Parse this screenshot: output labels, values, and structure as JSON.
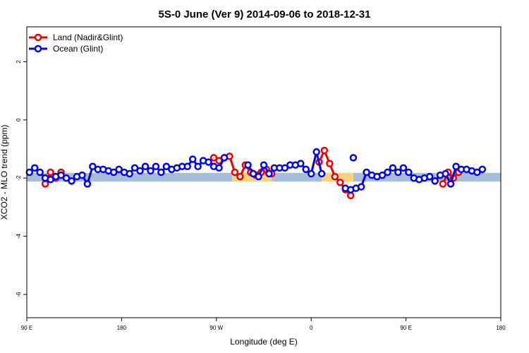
{
  "chart_data": {
    "type": "line",
    "title": "5S-0 June (Ver 9)   2014-09-06 to 2018-12-31",
    "xlabel": "Longitude (deg E)",
    "ylabel": "XCO2 - MLO trend (ppm)",
    "xlim": [
      90,
      450
    ],
    "ylim": [
      -6.8,
      3.2
    ],
    "xticks": [
      {
        "value": 90,
        "label": "90 E"
      },
      {
        "value": 162,
        "label": "180"
      },
      {
        "value": 234,
        "label": "90 W"
      },
      {
        "value": 306,
        "label": "0"
      },
      {
        "value": 378,
        "label": "90 E"
      },
      {
        "value": 450,
        "label": "180"
      }
    ],
    "yticks": [
      {
        "value": 2,
        "label": "2"
      },
      {
        "value": 0,
        "label": "0"
      },
      {
        "value": -2,
        "label": "-2"
      },
      {
        "value": -4,
        "label": "-4"
      },
      {
        "value": -6,
        "label": "-6"
      }
    ],
    "legend": {
      "position": "top-left"
    },
    "background_bands": [
      {
        "surface": "ocean",
        "color": "#a6bddb",
        "ymin": -2.12,
        "ymax": -1.82,
        "ranges": [
          [
            90,
            246
          ],
          [
            276,
            314
          ],
          [
            338,
            450
          ]
        ]
      },
      {
        "surface": "land",
        "color": "#fdd27a",
        "ymin": -2.12,
        "ymax": -1.82,
        "ranges": [
          [
            246,
            276
          ],
          [
            314,
            338
          ]
        ]
      }
    ],
    "series": [
      {
        "name": "Land (Nadir&Glint)",
        "color": "#ee0000",
        "segments": [
          [
            [
              104,
              -2.2
            ],
            [
              108,
              -1.8
            ],
            [
              112,
              -2.0
            ],
            [
              116,
              -1.8
            ]
          ],
          [
            [
              232,
              -1.3
            ],
            [
              236,
              -1.4
            ],
            [
              240,
              -1.3
            ],
            [
              244,
              -1.25
            ],
            [
              248,
              -1.8
            ],
            [
              252,
              -1.95
            ],
            [
              256,
              -1.55
            ],
            [
              260,
              -1.8
            ],
            [
              264,
              -1.9
            ],
            [
              268,
              -1.8
            ],
            [
              272,
              -1.7
            ],
            [
              276,
              -1.85
            ]
          ],
          [
            [
              312,
              -1.45
            ],
            [
              316,
              -1.05
            ],
            [
              320,
              -1.5
            ],
            [
              324,
              -1.95
            ],
            [
              328,
              -2.15
            ],
            [
              332,
              -2.4
            ],
            [
              336,
              -2.6
            ]
          ],
          [
            [
              406,
              -2.2
            ],
            [
              410,
              -1.8
            ],
            [
              414,
              -2.0
            ],
            [
              418,
              -1.8
            ]
          ]
        ]
      },
      {
        "name": "Ocean (Glint)",
        "color": "#0000ee",
        "segments": [
          [
            [
              92,
              -1.8
            ],
            [
              96,
              -1.65
            ],
            [
              100,
              -1.8
            ],
            [
              104,
              -2.0
            ],
            [
              108,
              -2.05
            ],
            [
              112,
              -1.95
            ],
            [
              116,
              -1.9
            ],
            [
              120,
              -2.0
            ],
            [
              124,
              -2.1
            ],
            [
              128,
              -1.95
            ],
            [
              132,
              -1.9
            ],
            [
              136,
              -2.2
            ],
            [
              140,
              -1.6
            ],
            [
              144,
              -1.7
            ],
            [
              148,
              -1.7
            ],
            [
              152,
              -1.75
            ],
            [
              156,
              -1.8
            ],
            [
              160,
              -1.7
            ],
            [
              164,
              -1.8
            ],
            [
              168,
              -1.85
            ],
            [
              172,
              -1.65
            ],
            [
              176,
              -1.75
            ],
            [
              180,
              -1.6
            ],
            [
              184,
              -1.75
            ],
            [
              188,
              -1.6
            ],
            [
              192,
              -1.8
            ],
            [
              196,
              -1.6
            ],
            [
              200,
              -1.7
            ],
            [
              204,
              -1.65
            ],
            [
              208,
              -1.6
            ],
            [
              212,
              -1.6
            ],
            [
              216,
              -1.35
            ],
            [
              220,
              -1.6
            ],
            [
              224,
              -1.4
            ],
            [
              228,
              -1.45
            ],
            [
              232,
              -1.6
            ],
            [
              236,
              -1.65
            ],
            [
              240,
              -1.3
            ]
          ],
          [
            [
              258,
              -1.55
            ],
            [
              262,
              -1.85
            ],
            [
              266,
              -1.95
            ],
            [
              270,
              -1.55
            ],
            [
              274,
              -1.85
            ],
            [
              278,
              -1.65
            ],
            [
              282,
              -1.65
            ],
            [
              286,
              -1.65
            ],
            [
              290,
              -1.55
            ],
            [
              294,
              -1.55
            ],
            [
              298,
              -1.5
            ],
            [
              302,
              -1.7
            ],
            [
              306,
              -1.85
            ],
            [
              310,
              -1.1
            ],
            [
              314,
              -1.85
            ]
          ],
          [
            [
              332,
              -2.35
            ],
            [
              336,
              -2.4
            ],
            [
              340,
              -2.35
            ],
            [
              344,
              -2.3
            ],
            [
              348,
              -1.8
            ],
            [
              352,
              -1.9
            ],
            [
              356,
              -1.95
            ],
            [
              360,
              -1.9
            ],
            [
              364,
              -1.8
            ],
            [
              368,
              -1.65
            ],
            [
              372,
              -1.8
            ],
            [
              376,
              -1.65
            ],
            [
              380,
              -1.8
            ],
            [
              384,
              -2.0
            ],
            [
              388,
              -2.05
            ],
            [
              392,
              -2.0
            ],
            [
              396,
              -1.95
            ],
            [
              400,
              -2.1
            ],
            [
              404,
              -1.9
            ],
            [
              408,
              -1.85
            ],
            [
              412,
              -2.2
            ],
            [
              416,
              -1.6
            ],
            [
              420,
              -1.7
            ],
            [
              424,
              -1.7
            ],
            [
              428,
              -1.75
            ],
            [
              432,
              -1.8
            ],
            [
              436,
              -1.7
            ]
          ],
          [
            [
              338,
              -1.3
            ]
          ]
        ]
      }
    ]
  }
}
